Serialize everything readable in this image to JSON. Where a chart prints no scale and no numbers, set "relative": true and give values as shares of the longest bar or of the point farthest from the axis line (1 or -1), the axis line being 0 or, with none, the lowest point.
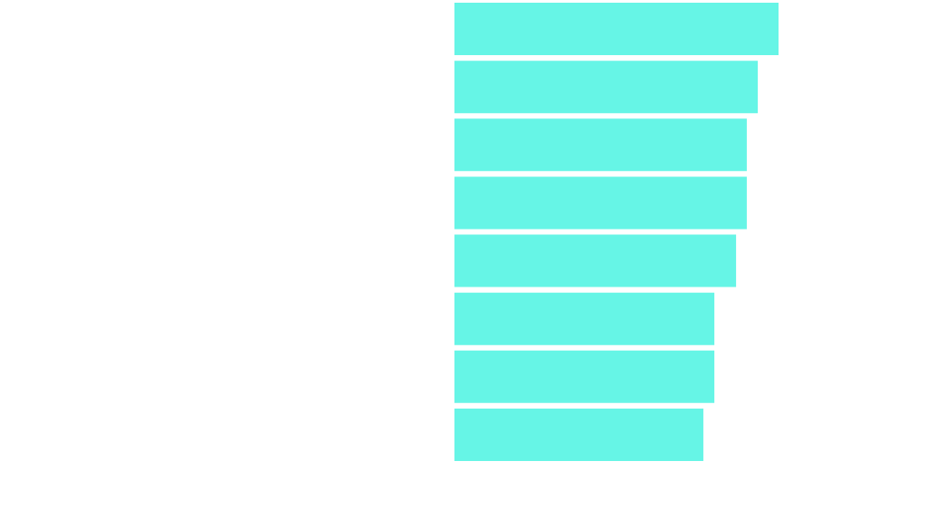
{
  "chart_data": {
    "type": "bar",
    "orientation": "horizontal",
    "relative": true,
    "categories": [
      null,
      null,
      null,
      null,
      null,
      null,
      null,
      null
    ],
    "values": [
      1,
      0.936,
      0.902,
      0.902,
      0.869,
      0.802,
      0.802,
      0.768
    ],
    "color": "#66f5e6"
  }
}
